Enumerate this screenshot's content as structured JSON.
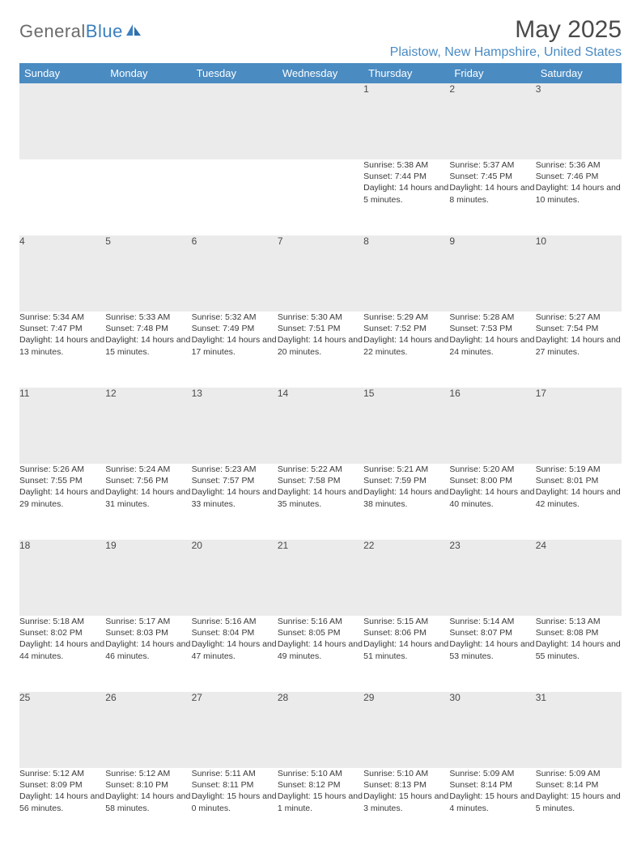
{
  "logo": {
    "general": "General",
    "blue": "Blue"
  },
  "title": "May 2025",
  "location": "Plaistow, New Hampshire, United States",
  "colors": {
    "header_bg": "#4a8bc2",
    "header_text": "#ffffff",
    "daynum_bg": "#ebebeb",
    "border": "#4a8bc2",
    "logo_gray": "#6b6b6b",
    "logo_blue": "#3b7fbf",
    "location_color": "#4a8bc2",
    "text": "#3a3a3a"
  },
  "weekdays": [
    "Sunday",
    "Monday",
    "Tuesday",
    "Wednesday",
    "Thursday",
    "Friday",
    "Saturday"
  ],
  "weeks": [
    [
      null,
      null,
      null,
      null,
      {
        "n": "1",
        "sr": "5:38 AM",
        "ss": "7:44 PM",
        "dl": "14 hours and 5 minutes."
      },
      {
        "n": "2",
        "sr": "5:37 AM",
        "ss": "7:45 PM",
        "dl": "14 hours and 8 minutes."
      },
      {
        "n": "3",
        "sr": "5:36 AM",
        "ss": "7:46 PM",
        "dl": "14 hours and 10 minutes."
      }
    ],
    [
      {
        "n": "4",
        "sr": "5:34 AM",
        "ss": "7:47 PM",
        "dl": "14 hours and 13 minutes."
      },
      {
        "n": "5",
        "sr": "5:33 AM",
        "ss": "7:48 PM",
        "dl": "14 hours and 15 minutes."
      },
      {
        "n": "6",
        "sr": "5:32 AM",
        "ss": "7:49 PM",
        "dl": "14 hours and 17 minutes."
      },
      {
        "n": "7",
        "sr": "5:30 AM",
        "ss": "7:51 PM",
        "dl": "14 hours and 20 minutes."
      },
      {
        "n": "8",
        "sr": "5:29 AM",
        "ss": "7:52 PM",
        "dl": "14 hours and 22 minutes."
      },
      {
        "n": "9",
        "sr": "5:28 AM",
        "ss": "7:53 PM",
        "dl": "14 hours and 24 minutes."
      },
      {
        "n": "10",
        "sr": "5:27 AM",
        "ss": "7:54 PM",
        "dl": "14 hours and 27 minutes."
      }
    ],
    [
      {
        "n": "11",
        "sr": "5:26 AM",
        "ss": "7:55 PM",
        "dl": "14 hours and 29 minutes."
      },
      {
        "n": "12",
        "sr": "5:24 AM",
        "ss": "7:56 PM",
        "dl": "14 hours and 31 minutes."
      },
      {
        "n": "13",
        "sr": "5:23 AM",
        "ss": "7:57 PM",
        "dl": "14 hours and 33 minutes."
      },
      {
        "n": "14",
        "sr": "5:22 AM",
        "ss": "7:58 PM",
        "dl": "14 hours and 35 minutes."
      },
      {
        "n": "15",
        "sr": "5:21 AM",
        "ss": "7:59 PM",
        "dl": "14 hours and 38 minutes."
      },
      {
        "n": "16",
        "sr": "5:20 AM",
        "ss": "8:00 PM",
        "dl": "14 hours and 40 minutes."
      },
      {
        "n": "17",
        "sr": "5:19 AM",
        "ss": "8:01 PM",
        "dl": "14 hours and 42 minutes."
      }
    ],
    [
      {
        "n": "18",
        "sr": "5:18 AM",
        "ss": "8:02 PM",
        "dl": "14 hours and 44 minutes."
      },
      {
        "n": "19",
        "sr": "5:17 AM",
        "ss": "8:03 PM",
        "dl": "14 hours and 46 minutes."
      },
      {
        "n": "20",
        "sr": "5:16 AM",
        "ss": "8:04 PM",
        "dl": "14 hours and 47 minutes."
      },
      {
        "n": "21",
        "sr": "5:16 AM",
        "ss": "8:05 PM",
        "dl": "14 hours and 49 minutes."
      },
      {
        "n": "22",
        "sr": "5:15 AM",
        "ss": "8:06 PM",
        "dl": "14 hours and 51 minutes."
      },
      {
        "n": "23",
        "sr": "5:14 AM",
        "ss": "8:07 PM",
        "dl": "14 hours and 53 minutes."
      },
      {
        "n": "24",
        "sr": "5:13 AM",
        "ss": "8:08 PM",
        "dl": "14 hours and 55 minutes."
      }
    ],
    [
      {
        "n": "25",
        "sr": "5:12 AM",
        "ss": "8:09 PM",
        "dl": "14 hours and 56 minutes."
      },
      {
        "n": "26",
        "sr": "5:12 AM",
        "ss": "8:10 PM",
        "dl": "14 hours and 58 minutes."
      },
      {
        "n": "27",
        "sr": "5:11 AM",
        "ss": "8:11 PM",
        "dl": "15 hours and 0 minutes."
      },
      {
        "n": "28",
        "sr": "5:10 AM",
        "ss": "8:12 PM",
        "dl": "15 hours and 1 minute."
      },
      {
        "n": "29",
        "sr": "5:10 AM",
        "ss": "8:13 PM",
        "dl": "15 hours and 3 minutes."
      },
      {
        "n": "30",
        "sr": "5:09 AM",
        "ss": "8:14 PM",
        "dl": "15 hours and 4 minutes."
      },
      {
        "n": "31",
        "sr": "5:09 AM",
        "ss": "8:14 PM",
        "dl": "15 hours and 5 minutes."
      }
    ]
  ],
  "labels": {
    "sunrise": "Sunrise:",
    "sunset": "Sunset:",
    "daylight": "Daylight:"
  }
}
